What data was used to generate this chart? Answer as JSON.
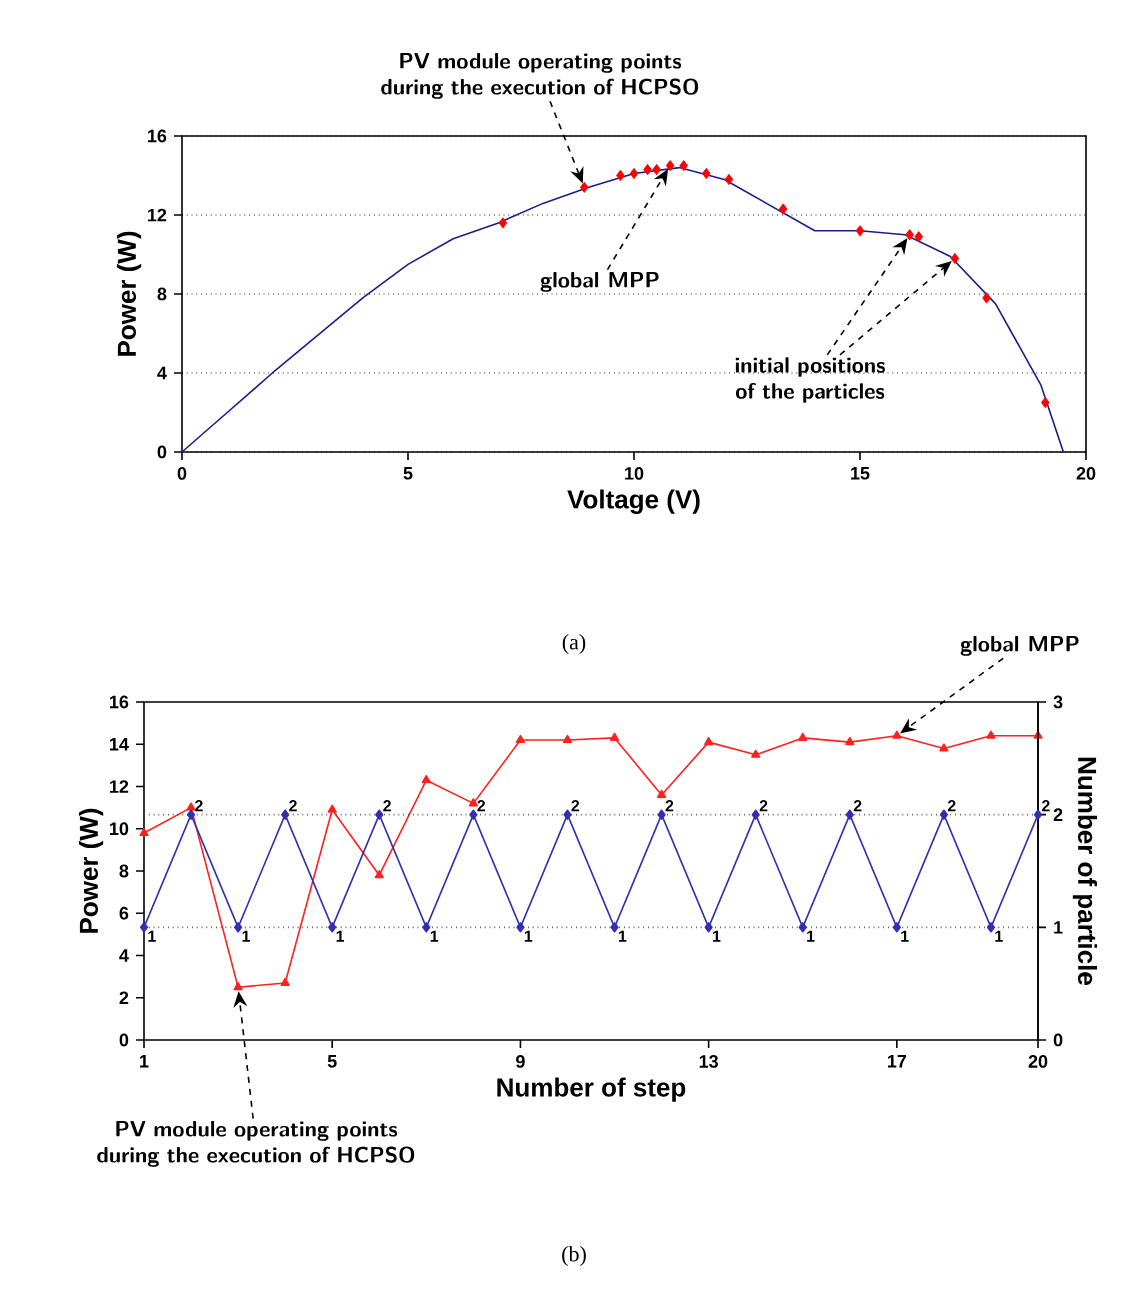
{
  "chart_data": [
    {
      "type": "line",
      "xlabel": "Voltage (V)",
      "ylabel": "Power (W)",
      "xlim": [
        0,
        20
      ],
      "ylim": [
        0,
        16
      ],
      "xticks": [
        0,
        5,
        10,
        15,
        20
      ],
      "yticks": [
        0,
        4,
        8,
        12,
        16
      ],
      "grid": "y",
      "series": [
        {
          "type": "line",
          "color": "#1c1c8c",
          "marker": "none",
          "x": [
            0,
            1,
            2,
            3,
            4,
            5,
            6,
            7,
            8,
            9,
            10,
            11,
            12,
            13,
            14,
            15,
            16,
            17,
            18,
            19,
            19.5
          ],
          "values": [
            0,
            2,
            4,
            5.9,
            7.8,
            9.5,
            10.8,
            11.6,
            12.6,
            13.4,
            14.1,
            14.4,
            13.8,
            12.5,
            11.2,
            11.2,
            11.0,
            9.9,
            7.5,
            3.4,
            0
          ]
        },
        {
          "type": "scatter",
          "color": "#ff0000",
          "marker": "diamond",
          "x": [
            7.1,
            8.9,
            9.7,
            10.0,
            10.3,
            10.5,
            10.8,
            11.1,
            11.6,
            12.1,
            13.3,
            15.0,
            16.1,
            16.3,
            17.1,
            17.8,
            19.1
          ],
          "values": [
            11.6,
            13.4,
            14.0,
            14.1,
            14.3,
            14.3,
            14.5,
            14.5,
            14.1,
            13.8,
            12.3,
            11.2,
            11.0,
            10.9,
            9.8,
            7.8,
            2.5
          ]
        }
      ],
      "annotations": [
        {
          "text": "PV module operating points during the execution of HCPSO",
          "x": 8.9,
          "y": 13.4
        },
        {
          "text": "global MPP",
          "x": 10.8,
          "y": 14.5
        },
        {
          "text": "initial positions of the particles",
          "x": 16.1,
          "y": 11.0
        },
        "(a)"
      ]
    },
    {
      "type": "line",
      "xlabel": "Number of step",
      "ylabel": "Power (W)",
      "y2label": "Number of particle",
      "xlim": [
        1,
        20
      ],
      "xticks": [
        1,
        5,
        9,
        13,
        17,
        20
      ],
      "ylim": [
        0,
        16
      ],
      "yticks": [
        0,
        2,
        4,
        6,
        8,
        10,
        12,
        14,
        16
      ],
      "y2lim": [
        0,
        3
      ],
      "y2ticks": [
        0,
        1,
        2,
        3
      ],
      "grid": "y2",
      "x": [
        1,
        2,
        3,
        4,
        5,
        6,
        7,
        8,
        9,
        10,
        11,
        12,
        13,
        14,
        15,
        16,
        17,
        18,
        19,
        20
      ],
      "series": [
        {
          "color": "#ff2020",
          "marker": "triangle",
          "values": [
            9.8,
            11.0,
            2.5,
            2.7,
            10.9,
            7.8,
            12.3,
            11.2,
            14.2,
            14.2,
            14.3,
            11.6,
            14.1,
            13.5,
            14.3,
            14.1,
            14.4,
            13.8,
            14.4,
            14.4
          ]
        },
        {
          "color": "#3030b0",
          "marker": "diamond",
          "axis": "y2",
          "data_labels": true,
          "values": [
            1,
            2,
            1,
            2,
            1,
            2,
            1,
            2,
            1,
            2,
            1,
            2,
            1,
            2,
            1,
            2,
            1,
            2,
            1,
            2
          ]
        }
      ],
      "annotations": [
        {
          "text": "global MPP",
          "x": 17,
          "y": 14.4
        },
        {
          "text": "PV module operating points during the execution of HCPSO",
          "x": 3,
          "y": 2.5
        },
        "(b)"
      ]
    }
  ]
}
